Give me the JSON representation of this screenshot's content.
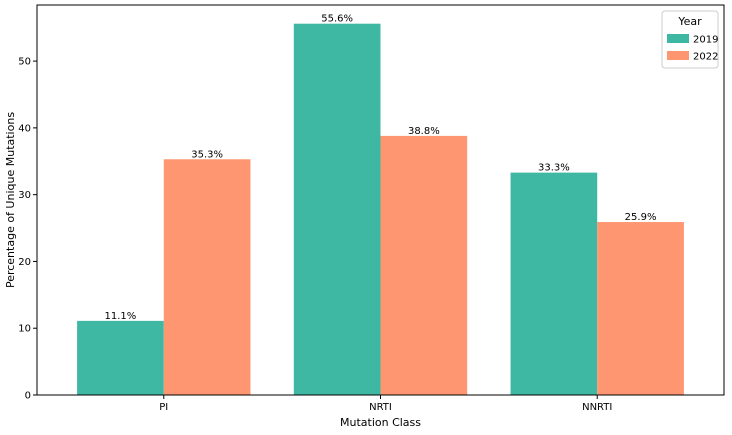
{
  "chart_data": {
    "type": "bar",
    "categories": [
      "PI",
      "NRTI",
      "NNRTI"
    ],
    "series": [
      {
        "name": "2019",
        "values": [
          11.1,
          55.6,
          33.3
        ],
        "labels": [
          "11.1%",
          "55.6%",
          "33.3%"
        ],
        "color": "#3fb8a3"
      },
      {
        "name": "2022",
        "values": [
          35.3,
          38.8,
          25.9
        ],
        "labels": [
          "35.3%",
          "38.8%",
          "25.9%"
        ],
        "color": "#fe9671"
      }
    ],
    "xlabel": "Mutation Class",
    "ylabel": "Percentage of Unique Mutations",
    "ylim": [
      0,
      58.4
    ],
    "yticks": [
      0,
      10,
      20,
      30,
      40,
      50
    ],
    "legend": {
      "title": "Year",
      "position": "top-right"
    },
    "grid": false
  }
}
